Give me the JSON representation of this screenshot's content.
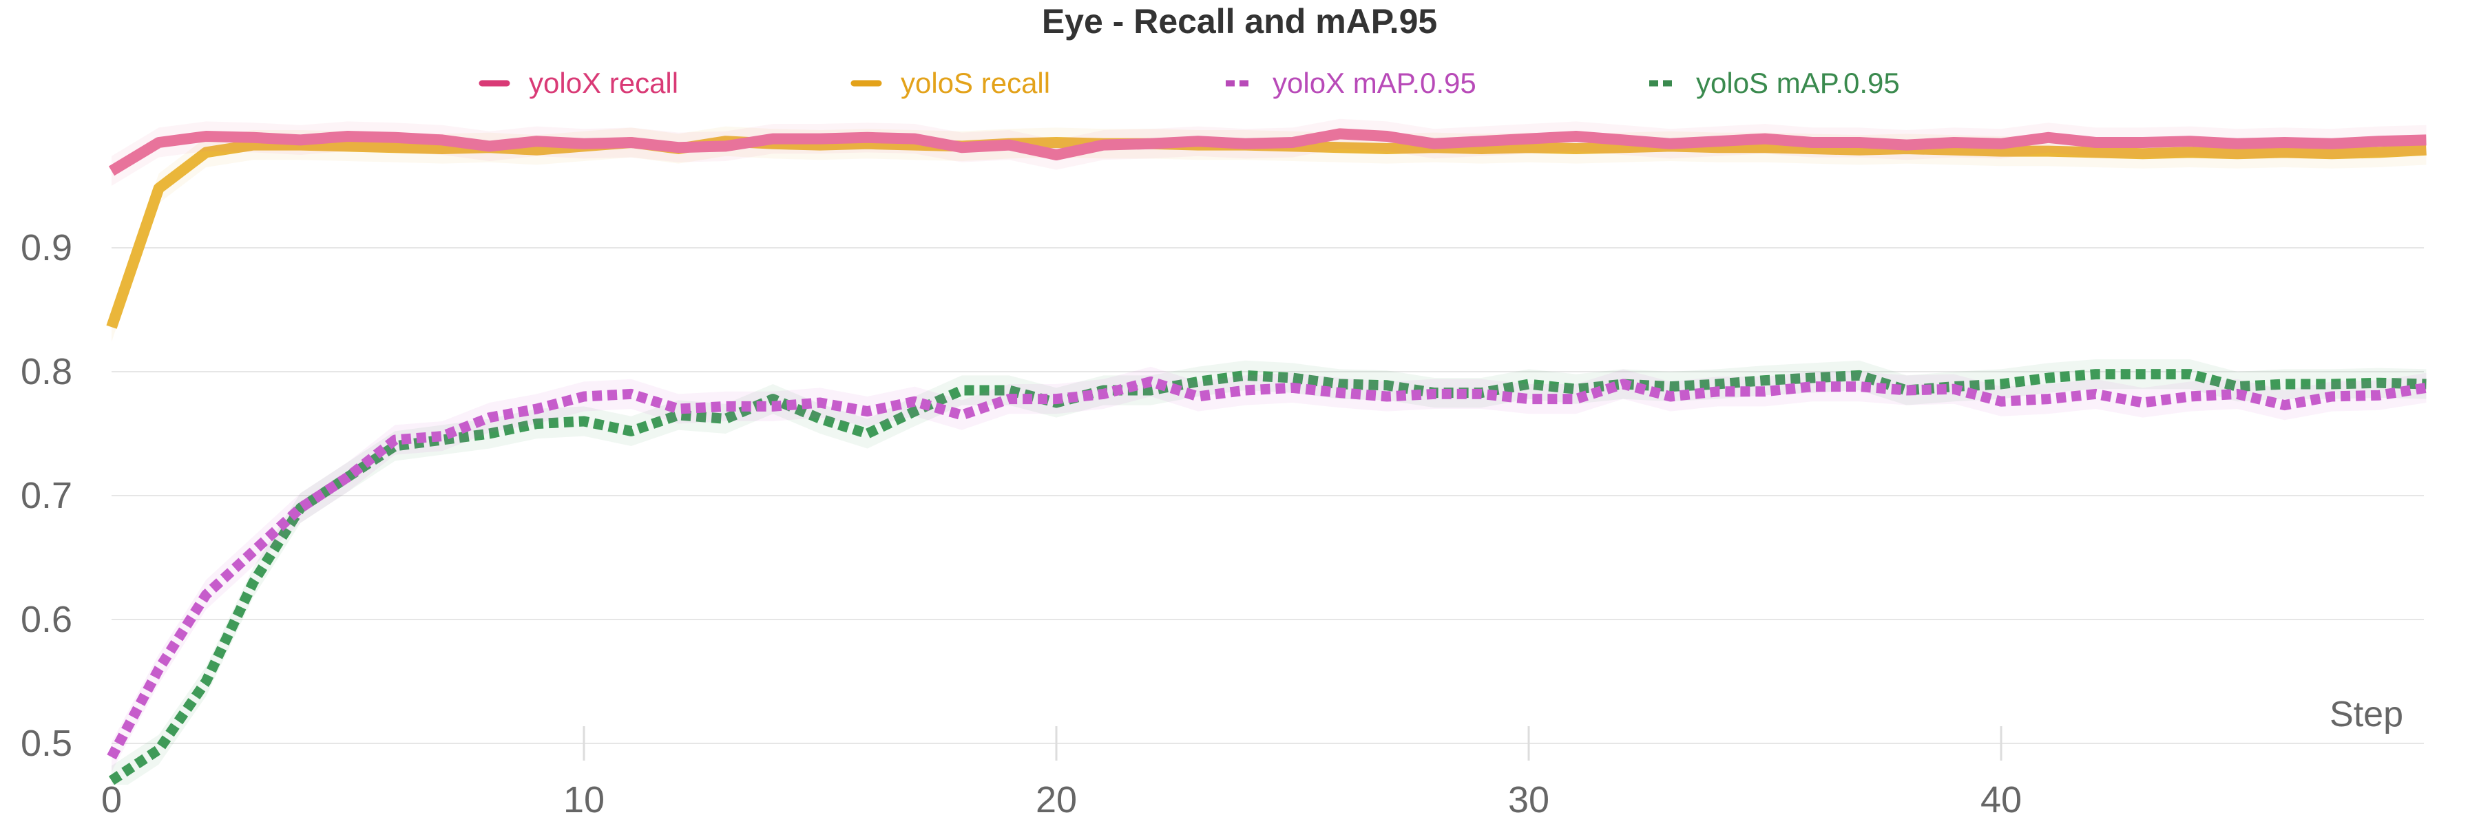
{
  "chart_data": {
    "type": "line",
    "title": "Eye - Recall and mAP.95",
    "xlabel": "Step",
    "ylabel": "",
    "xlim": [
      0,
      49
    ],
    "ylim": [
      0.49,
      1.0
    ],
    "x_ticks": [
      0,
      10,
      20,
      30,
      40
    ],
    "y_ticks": [
      0.5,
      0.6,
      0.7,
      0.8,
      0.9
    ],
    "grid": true,
    "legend_position": "top",
    "x": [
      0,
      1,
      2,
      3,
      4,
      5,
      6,
      7,
      8,
      9,
      10,
      11,
      12,
      13,
      14,
      15,
      16,
      17,
      18,
      19,
      20,
      21,
      22,
      23,
      24,
      25,
      26,
      27,
      28,
      29,
      30,
      31,
      32,
      33,
      34,
      35,
      36,
      37,
      38,
      39,
      40,
      41,
      42,
      43,
      44,
      45,
      46,
      47,
      48,
      49
    ],
    "series": [
      {
        "name": "yoloX recall",
        "color": "#e8739b",
        "legend_color": "#d93a76",
        "dashed": false,
        "values": [
          0.962,
          0.985,
          0.99,
          0.989,
          0.987,
          0.99,
          0.989,
          0.987,
          0.982,
          0.986,
          0.984,
          0.985,
          0.981,
          0.982,
          0.988,
          0.988,
          0.989,
          0.988,
          0.981,
          0.983,
          0.975,
          0.983,
          0.984,
          0.986,
          0.984,
          0.985,
          0.992,
          0.99,
          0.984,
          0.986,
          0.988,
          0.99,
          0.987,
          0.984,
          0.986,
          0.988,
          0.985,
          0.985,
          0.983,
          0.985,
          0.984,
          0.989,
          0.985,
          0.985,
          0.986,
          0.984,
          0.985,
          0.984,
          0.986,
          0.987
        ]
      },
      {
        "name": "yoloS recall",
        "color": "#eab63a",
        "legend_color": "#e3a21a",
        "dashed": false,
        "values": [
          0.836,
          0.948,
          0.977,
          0.983,
          0.983,
          0.982,
          0.981,
          0.98,
          0.981,
          0.979,
          0.982,
          0.985,
          0.98,
          0.986,
          0.984,
          0.983,
          0.984,
          0.983,
          0.982,
          0.984,
          0.985,
          0.984,
          0.984,
          0.983,
          0.983,
          0.982,
          0.981,
          0.98,
          0.981,
          0.98,
          0.981,
          0.98,
          0.981,
          0.982,
          0.981,
          0.981,
          0.98,
          0.979,
          0.98,
          0.979,
          0.978,
          0.978,
          0.977,
          0.976,
          0.977,
          0.976,
          0.977,
          0.976,
          0.977,
          0.979
        ]
      },
      {
        "name": "yoloX mAP.0.95",
        "color": "#c65ccb",
        "legend_color": "#b84ab8",
        "dashed": true,
        "values": [
          0.489,
          0.56,
          0.62,
          0.655,
          0.69,
          0.715,
          0.745,
          0.748,
          0.763,
          0.77,
          0.78,
          0.782,
          0.77,
          0.772,
          0.772,
          0.775,
          0.768,
          0.776,
          0.765,
          0.778,
          0.778,
          0.782,
          0.792,
          0.78,
          0.785,
          0.787,
          0.783,
          0.78,
          0.782,
          0.782,
          0.778,
          0.778,
          0.79,
          0.78,
          0.784,
          0.784,
          0.788,
          0.788,
          0.785,
          0.786,
          0.776,
          0.778,
          0.782,
          0.775,
          0.78,
          0.782,
          0.773,
          0.78,
          0.781,
          0.787
        ]
      },
      {
        "name": "yoloS mAP.0.95",
        "color": "#3f9a58",
        "legend_color": "#3a8a4e",
        "dashed": true,
        "values": [
          0.47,
          0.495,
          0.55,
          0.63,
          0.69,
          0.715,
          0.74,
          0.745,
          0.75,
          0.758,
          0.76,
          0.752,
          0.765,
          0.762,
          0.778,
          0.762,
          0.75,
          0.768,
          0.785,
          0.785,
          0.775,
          0.785,
          0.785,
          0.792,
          0.797,
          0.795,
          0.79,
          0.789,
          0.783,
          0.783,
          0.79,
          0.786,
          0.79,
          0.788,
          0.79,
          0.793,
          0.795,
          0.797,
          0.785,
          0.788,
          0.79,
          0.795,
          0.798,
          0.798,
          0.798,
          0.788,
          0.79,
          0.79,
          0.791,
          0.79
        ]
      }
    ]
  }
}
